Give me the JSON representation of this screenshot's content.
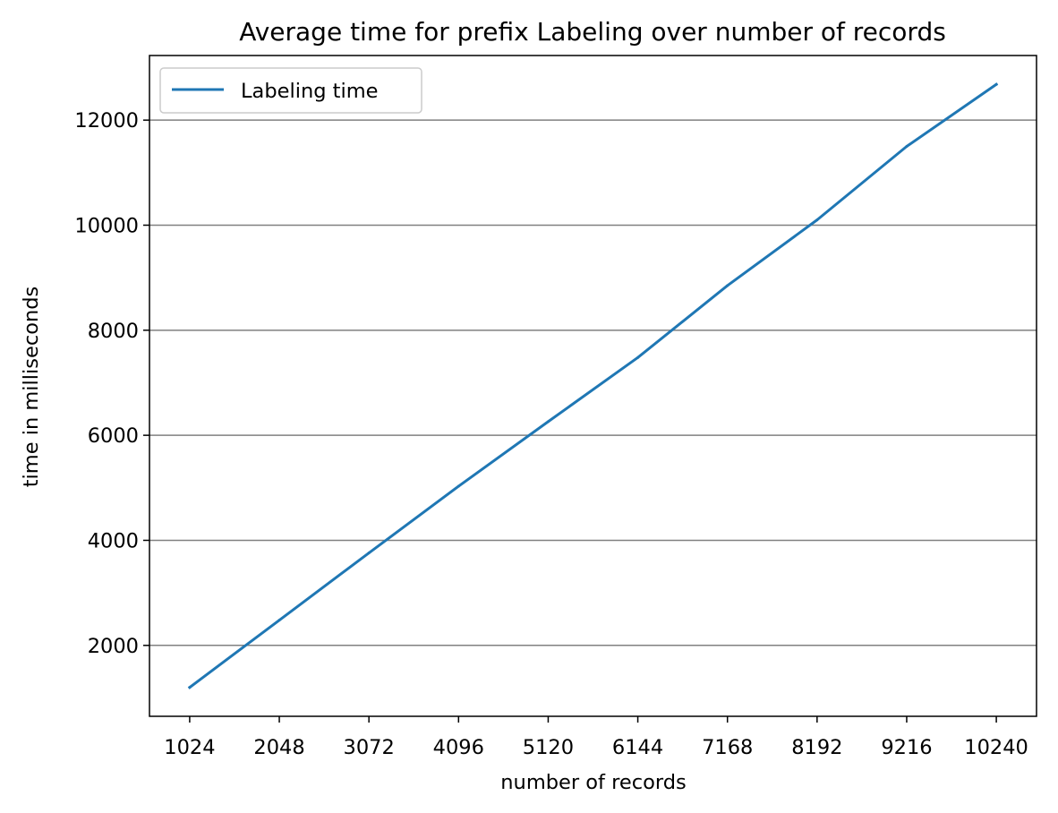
{
  "chart_data": {
    "type": "line",
    "title": "Average time for prefix Labeling over number of records",
    "xlabel": "number of records",
    "ylabel": "time in milliseconds",
    "categories": [
      "1024",
      "2048",
      "3072",
      "4096",
      "5120",
      "6144",
      "7168",
      "8192",
      "9216",
      "10240"
    ],
    "x": [
      1024,
      2048,
      3072,
      4096,
      5120,
      6144,
      7168,
      8192,
      9216,
      10240
    ],
    "series": [
      {
        "name": "Labeling time",
        "color": "#1f77b4",
        "values": [
          1200,
          2480,
          3760,
          5030,
          6260,
          7480,
          8850,
          10100,
          11500,
          12680
        ]
      }
    ],
    "xlim": [
      564.8,
      10699.2
    ],
    "ylim": [
      650,
      13230
    ],
    "yticks": [
      2000,
      4000,
      6000,
      8000,
      10000,
      12000
    ],
    "ytick_labels": [
      "2000",
      "4000",
      "6000",
      "8000",
      "10000",
      "12000"
    ],
    "grid": "horizontal",
    "grid_color": "#808080",
    "legend_position": "upper-left"
  }
}
